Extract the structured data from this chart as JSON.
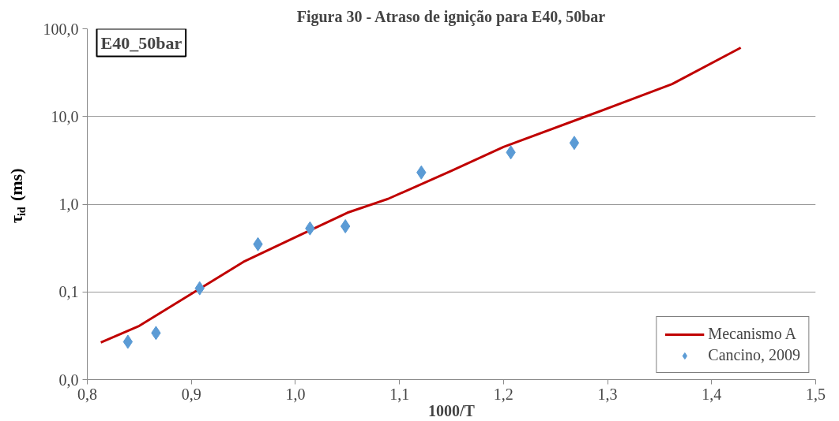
{
  "chart_data": {
    "type": "line",
    "title": "Figura 30 - Atraso de ignição para E40, 50bar",
    "xlabel": "1000/T",
    "ylabel": "τ$_{id}$ (ms)",
    "annotations": [
      "E40_50bar"
    ],
    "log": "y",
    "grid": "y",
    "legend": "bottom right",
    "xlim": [
      0.8,
      1.5
    ],
    "xticks": [
      {
        "value": 0.8,
        "label": "0,8"
      },
      {
        "value": 0.9,
        "label": "0,9"
      },
      {
        "value": 1.0,
        "label": "1,0"
      },
      {
        "value": 1.1,
        "label": "1,1"
      },
      {
        "value": 1.2,
        "label": "1,2"
      },
      {
        "value": 1.3,
        "label": "1,3"
      },
      {
        "value": 1.4,
        "label": "1,4"
      },
      {
        "value": 1.5,
        "label": "1,5"
      }
    ],
    "ylim": [
      0.01,
      100
    ],
    "yticks": [
      {
        "value": 0.01,
        "label": "0,0"
      },
      {
        "value": 0.1,
        "label": "0,1"
      },
      {
        "value": 1,
        "label": "1,0"
      },
      {
        "value": 10,
        "label": "10,0"
      },
      {
        "value": 100,
        "label": "100,0"
      }
    ],
    "series": [
      {
        "name": "Mecanismo A",
        "type": "line",
        "color": "#c00000",
        "marker": "none",
        "line_style": "solid",
        "x": [
          0.813,
          0.85,
          0.9,
          0.95,
          1.0,
          1.05,
          1.089,
          1.15,
          1.2,
          1.28,
          1.362,
          1.428
        ],
        "values": [
          0.0265,
          0.041,
          0.095,
          0.22,
          0.42,
          0.8,
          1.15,
          2.4,
          4.5,
          10.1,
          23.4,
          60.8
        ]
      },
      {
        "name": "Cancino, 2009",
        "type": "scatter",
        "color": "#5b9bd5",
        "marker": "diamond",
        "x": [
          0.839,
          0.866,
          0.908,
          0.964,
          1.014,
          1.048,
          1.121,
          1.207,
          1.268
        ],
        "values": [
          0.027,
          0.034,
          0.11,
          0.35,
          0.53,
          0.56,
          2.3,
          3.9,
          5.0
        ]
      }
    ]
  }
}
